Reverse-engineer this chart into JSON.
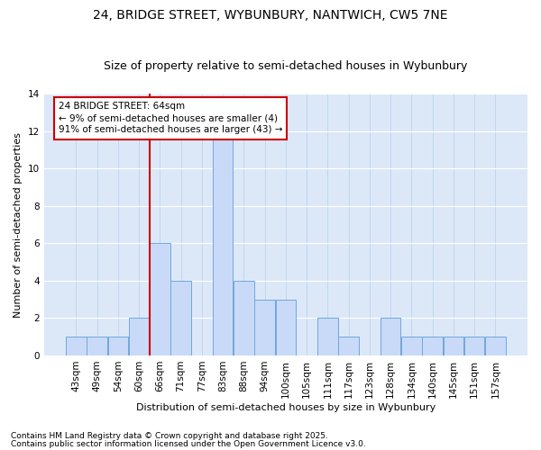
{
  "title": "24, BRIDGE STREET, WYBUNBURY, NANTWICH, CW5 7NE",
  "subtitle": "Size of property relative to semi-detached houses in Wybunbury",
  "xlabel": "Distribution of semi-detached houses by size in Wybunbury",
  "ylabel": "Number of semi-detached properties",
  "bins": [
    43,
    49,
    54,
    60,
    66,
    71,
    77,
    83,
    88,
    94,
    100,
    105,
    111,
    117,
    123,
    128,
    134,
    140,
    145,
    151,
    157
  ],
  "counts": [
    1,
    1,
    1,
    2,
    6,
    4,
    0,
    12,
    4,
    3,
    3,
    0,
    2,
    1,
    0,
    2,
    1,
    1,
    1,
    1,
    1
  ],
  "red_line_bin_index": 4,
  "annotation_text": "24 BRIDGE STREET: 64sqm\n← 9% of semi-detached houses are smaller (4)\n91% of semi-detached houses are larger (43) →",
  "annotation_box_color": "#ffffff",
  "annotation_box_edge": "#cc0000",
  "bar_color": "#c9daf8",
  "bar_edge_color": "#6fa8dc",
  "bg_color": "#dce8f8",
  "footnote1": "Contains HM Land Registry data © Crown copyright and database right 2025.",
  "footnote2": "Contains public sector information licensed under the Open Government Licence v3.0.",
  "ylim": [
    0,
    14
  ],
  "yticks": [
    0,
    2,
    4,
    6,
    8,
    10,
    12,
    14
  ],
  "title_fontsize": 10,
  "subtitle_fontsize": 9,
  "axis_label_fontsize": 8,
  "tick_fontsize": 7.5,
  "annotation_fontsize": 7.5,
  "footnote_fontsize": 6.5
}
